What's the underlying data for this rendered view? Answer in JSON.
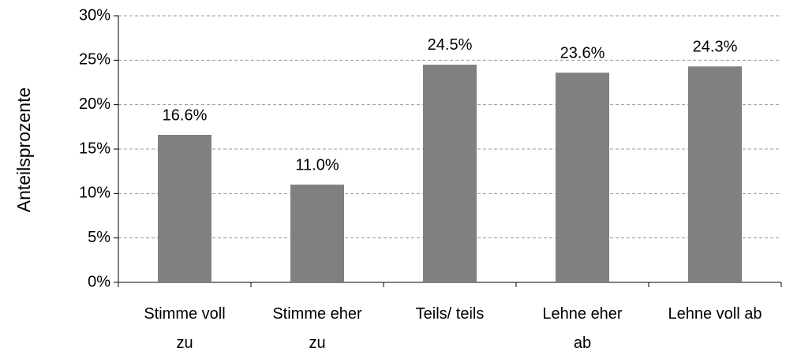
{
  "chart_data": {
    "type": "bar",
    "y_label": "Anteilsprozente",
    "categories": [
      "Stimme voll zu",
      "Stimme eher zu",
      "Teils/ teils",
      "Lehne eher ab",
      "Lehne voll ab"
    ],
    "values": [
      16.6,
      11.0,
      24.5,
      23.6,
      24.3
    ],
    "value_labels": [
      "16.6%",
      "11.0%",
      "24.5%",
      "23.6%",
      "24.3%"
    ],
    "color": "#808080",
    "ylim": [
      0,
      30
    ],
    "yticks": [
      {
        "value": 0,
        "label": "0%"
      },
      {
        "value": 5,
        "label": "5%"
      },
      {
        "value": 10,
        "label": "10%"
      },
      {
        "value": 15,
        "label": "15%"
      },
      {
        "value": 20,
        "label": "20%"
      },
      {
        "value": 25,
        "label": "25%"
      },
      {
        "value": 30,
        "label": "30%"
      }
    ],
    "grid": true
  }
}
